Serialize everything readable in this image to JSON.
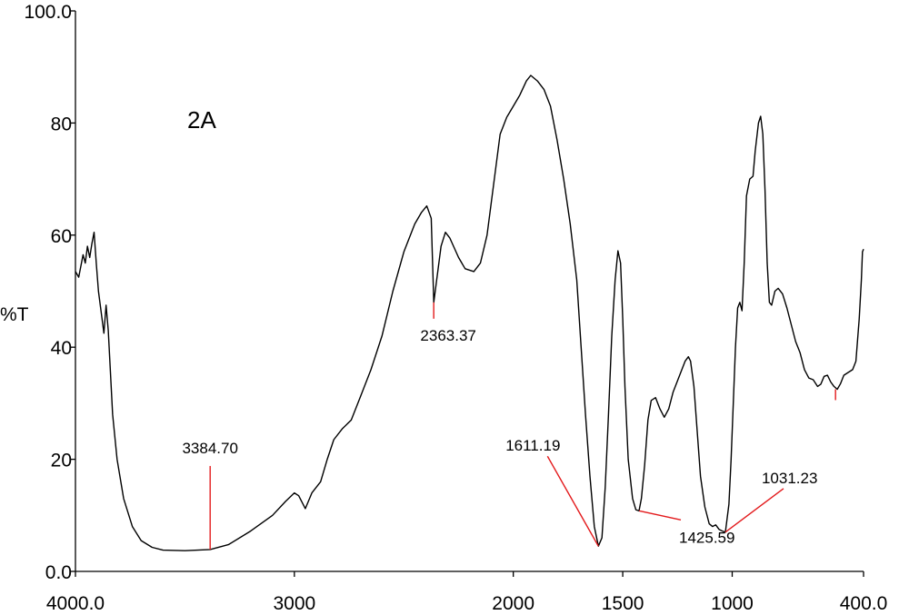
{
  "chart_data": {
    "type": "line",
    "panel_label": "2A",
    "ylabel": "%T",
    "xlabel": "",
    "xlim": [
      4000,
      400
    ],
    "ylim": [
      0,
      100
    ],
    "x_ticks": [
      {
        "value": 4000,
        "label": "4000.0"
      },
      {
        "value": 3000,
        "label": "3000"
      },
      {
        "value": 2000,
        "label": "2000"
      },
      {
        "value": 1500,
        "label": "1500"
      },
      {
        "value": 1000,
        "label": "1000"
      },
      {
        "value": 400,
        "label": "400.0"
      }
    ],
    "y_ticks": [
      {
        "value": 0,
        "label": "0.0"
      },
      {
        "value": 20,
        "label": "20"
      },
      {
        "value": 40,
        "label": "40"
      },
      {
        "value": 60,
        "label": "60"
      },
      {
        "value": 80,
        "label": "80"
      },
      {
        "value": 100,
        "label": "100.0"
      }
    ],
    "series": [
      {
        "points": [
          [
            4000,
            53.5
          ],
          [
            3985,
            52.5
          ],
          [
            3965,
            56.5
          ],
          [
            3955,
            55
          ],
          [
            3945,
            58
          ],
          [
            3935,
            56
          ],
          [
            3925,
            58.5
          ],
          [
            3915,
            60.5
          ],
          [
            3905,
            55
          ],
          [
            3895,
            50
          ],
          [
            3885,
            47
          ],
          [
            3870,
            42.5
          ],
          [
            3860,
            47.5
          ],
          [
            3850,
            43
          ],
          [
            3830,
            28
          ],
          [
            3810,
            20
          ],
          [
            3780,
            13
          ],
          [
            3740,
            8
          ],
          [
            3700,
            5.5
          ],
          [
            3650,
            4.3
          ],
          [
            3600,
            3.8
          ],
          [
            3500,
            3.7
          ],
          [
            3384.7,
            3.9
          ],
          [
            3300,
            4.8
          ],
          [
            3200,
            7.2
          ],
          [
            3100,
            10
          ],
          [
            3040,
            12.5
          ],
          [
            3000,
            14
          ],
          [
            2980,
            13.5
          ],
          [
            2950,
            11.2
          ],
          [
            2920,
            14
          ],
          [
            2880,
            16
          ],
          [
            2850,
            20
          ],
          [
            2820,
            23.5
          ],
          [
            2780,
            25.5
          ],
          [
            2740,
            27
          ],
          [
            2700,
            31
          ],
          [
            2650,
            36
          ],
          [
            2600,
            42
          ],
          [
            2550,
            50
          ],
          [
            2500,
            57
          ],
          [
            2450,
            62
          ],
          [
            2420,
            64
          ],
          [
            2395,
            65.2
          ],
          [
            2375,
            63
          ],
          [
            2363.37,
            48
          ],
          [
            2350,
            52
          ],
          [
            2330,
            58
          ],
          [
            2310,
            60.5
          ],
          [
            2290,
            59.5
          ],
          [
            2250,
            56
          ],
          [
            2220,
            54
          ],
          [
            2180,
            53.5
          ],
          [
            2150,
            55
          ],
          [
            2120,
            60
          ],
          [
            2100,
            66
          ],
          [
            2080,
            72
          ],
          [
            2060,
            78
          ],
          [
            2030,
            81
          ],
          [
            2000,
            83
          ],
          [
            1970,
            85
          ],
          [
            1940,
            87.5
          ],
          [
            1920,
            88.5
          ],
          [
            1890,
            87.5
          ],
          [
            1860,
            86
          ],
          [
            1830,
            83
          ],
          [
            1800,
            77
          ],
          [
            1770,
            70
          ],
          [
            1740,
            62
          ],
          [
            1710,
            52
          ],
          [
            1690,
            40
          ],
          [
            1670,
            28
          ],
          [
            1650,
            17
          ],
          [
            1630,
            8
          ],
          [
            1611.19,
            4.5
          ],
          [
            1595,
            6
          ],
          [
            1580,
            15
          ],
          [
            1565,
            28
          ],
          [
            1550,
            42
          ],
          [
            1535,
            52
          ],
          [
            1522,
            57.2
          ],
          [
            1510,
            55
          ],
          [
            1500,
            45
          ],
          [
            1490,
            33
          ],
          [
            1475,
            20
          ],
          [
            1455,
            13
          ],
          [
            1440,
            11
          ],
          [
            1425.59,
            10.8
          ],
          [
            1415,
            13
          ],
          [
            1400,
            19
          ],
          [
            1385,
            27
          ],
          [
            1370,
            30.5
          ],
          [
            1350,
            31
          ],
          [
            1330,
            29
          ],
          [
            1310,
            27.5
          ],
          [
            1290,
            29
          ],
          [
            1270,
            32
          ],
          [
            1250,
            34
          ],
          [
            1230,
            36
          ],
          [
            1215,
            37.5
          ],
          [
            1200,
            38.3
          ],
          [
            1190,
            37.5
          ],
          [
            1175,
            33
          ],
          [
            1160,
            25
          ],
          [
            1145,
            17
          ],
          [
            1125,
            11.5
          ],
          [
            1105,
            8.5
          ],
          [
            1090,
            8
          ],
          [
            1075,
            8.3
          ],
          [
            1060,
            7.5
          ],
          [
            1045,
            7.2
          ],
          [
            1031.23,
            7.0
          ],
          [
            1015,
            12
          ],
          [
            1005,
            20
          ],
          [
            995,
            30
          ],
          [
            985,
            40
          ],
          [
            975,
            47
          ],
          [
            965,
            48
          ],
          [
            955,
            46.5
          ],
          [
            945,
            55
          ],
          [
            935,
            67
          ],
          [
            920,
            70
          ],
          [
            905,
            70.5
          ],
          [
            895,
            75
          ],
          [
            880,
            80
          ],
          [
            870,
            81.2
          ],
          [
            860,
            78
          ],
          [
            850,
            68
          ],
          [
            840,
            55
          ],
          [
            830,
            48
          ],
          [
            820,
            47.5
          ],
          [
            805,
            50
          ],
          [
            790,
            50.5
          ],
          [
            770,
            49.5
          ],
          [
            750,
            47
          ],
          [
            730,
            44
          ],
          [
            710,
            41
          ],
          [
            690,
            39
          ],
          [
            670,
            36
          ],
          [
            650,
            34.5
          ],
          [
            630,
            34.2
          ],
          [
            610,
            33
          ],
          [
            595,
            33.4
          ],
          [
            580,
            34.8
          ],
          [
            565,
            35
          ],
          [
            550,
            33.8
          ],
          [
            535,
            33
          ],
          [
            520,
            32.5
          ],
          [
            505,
            33.5
          ],
          [
            490,
            35
          ],
          [
            470,
            35.5
          ],
          [
            450,
            36
          ],
          [
            435,
            37.5
          ],
          [
            420,
            45
          ],
          [
            410,
            52
          ],
          [
            405,
            57
          ],
          [
            400,
            57.5
          ]
        ]
      }
    ],
    "peaks": [
      {
        "label": "3384.70",
        "wavenumber": 3384.7,
        "value": 3.9,
        "label_position": "above"
      },
      {
        "label": "2363.37",
        "wavenumber": 2363.37,
        "value": 48,
        "label_position": "below"
      },
      {
        "label": "1611.19",
        "wavenumber": 1611.19,
        "value": 4.5,
        "label_position": "upper-left"
      },
      {
        "label": "1425.59",
        "wavenumber": 1425.59,
        "value": 10.8,
        "label_position": "lower-right"
      },
      {
        "label": "1031.23",
        "wavenumber": 1031.23,
        "value": 7.0,
        "label_position": "upper-right"
      },
      {
        "label": "",
        "wavenumber": 528,
        "value": 32.5,
        "label_position": "none"
      }
    ]
  }
}
